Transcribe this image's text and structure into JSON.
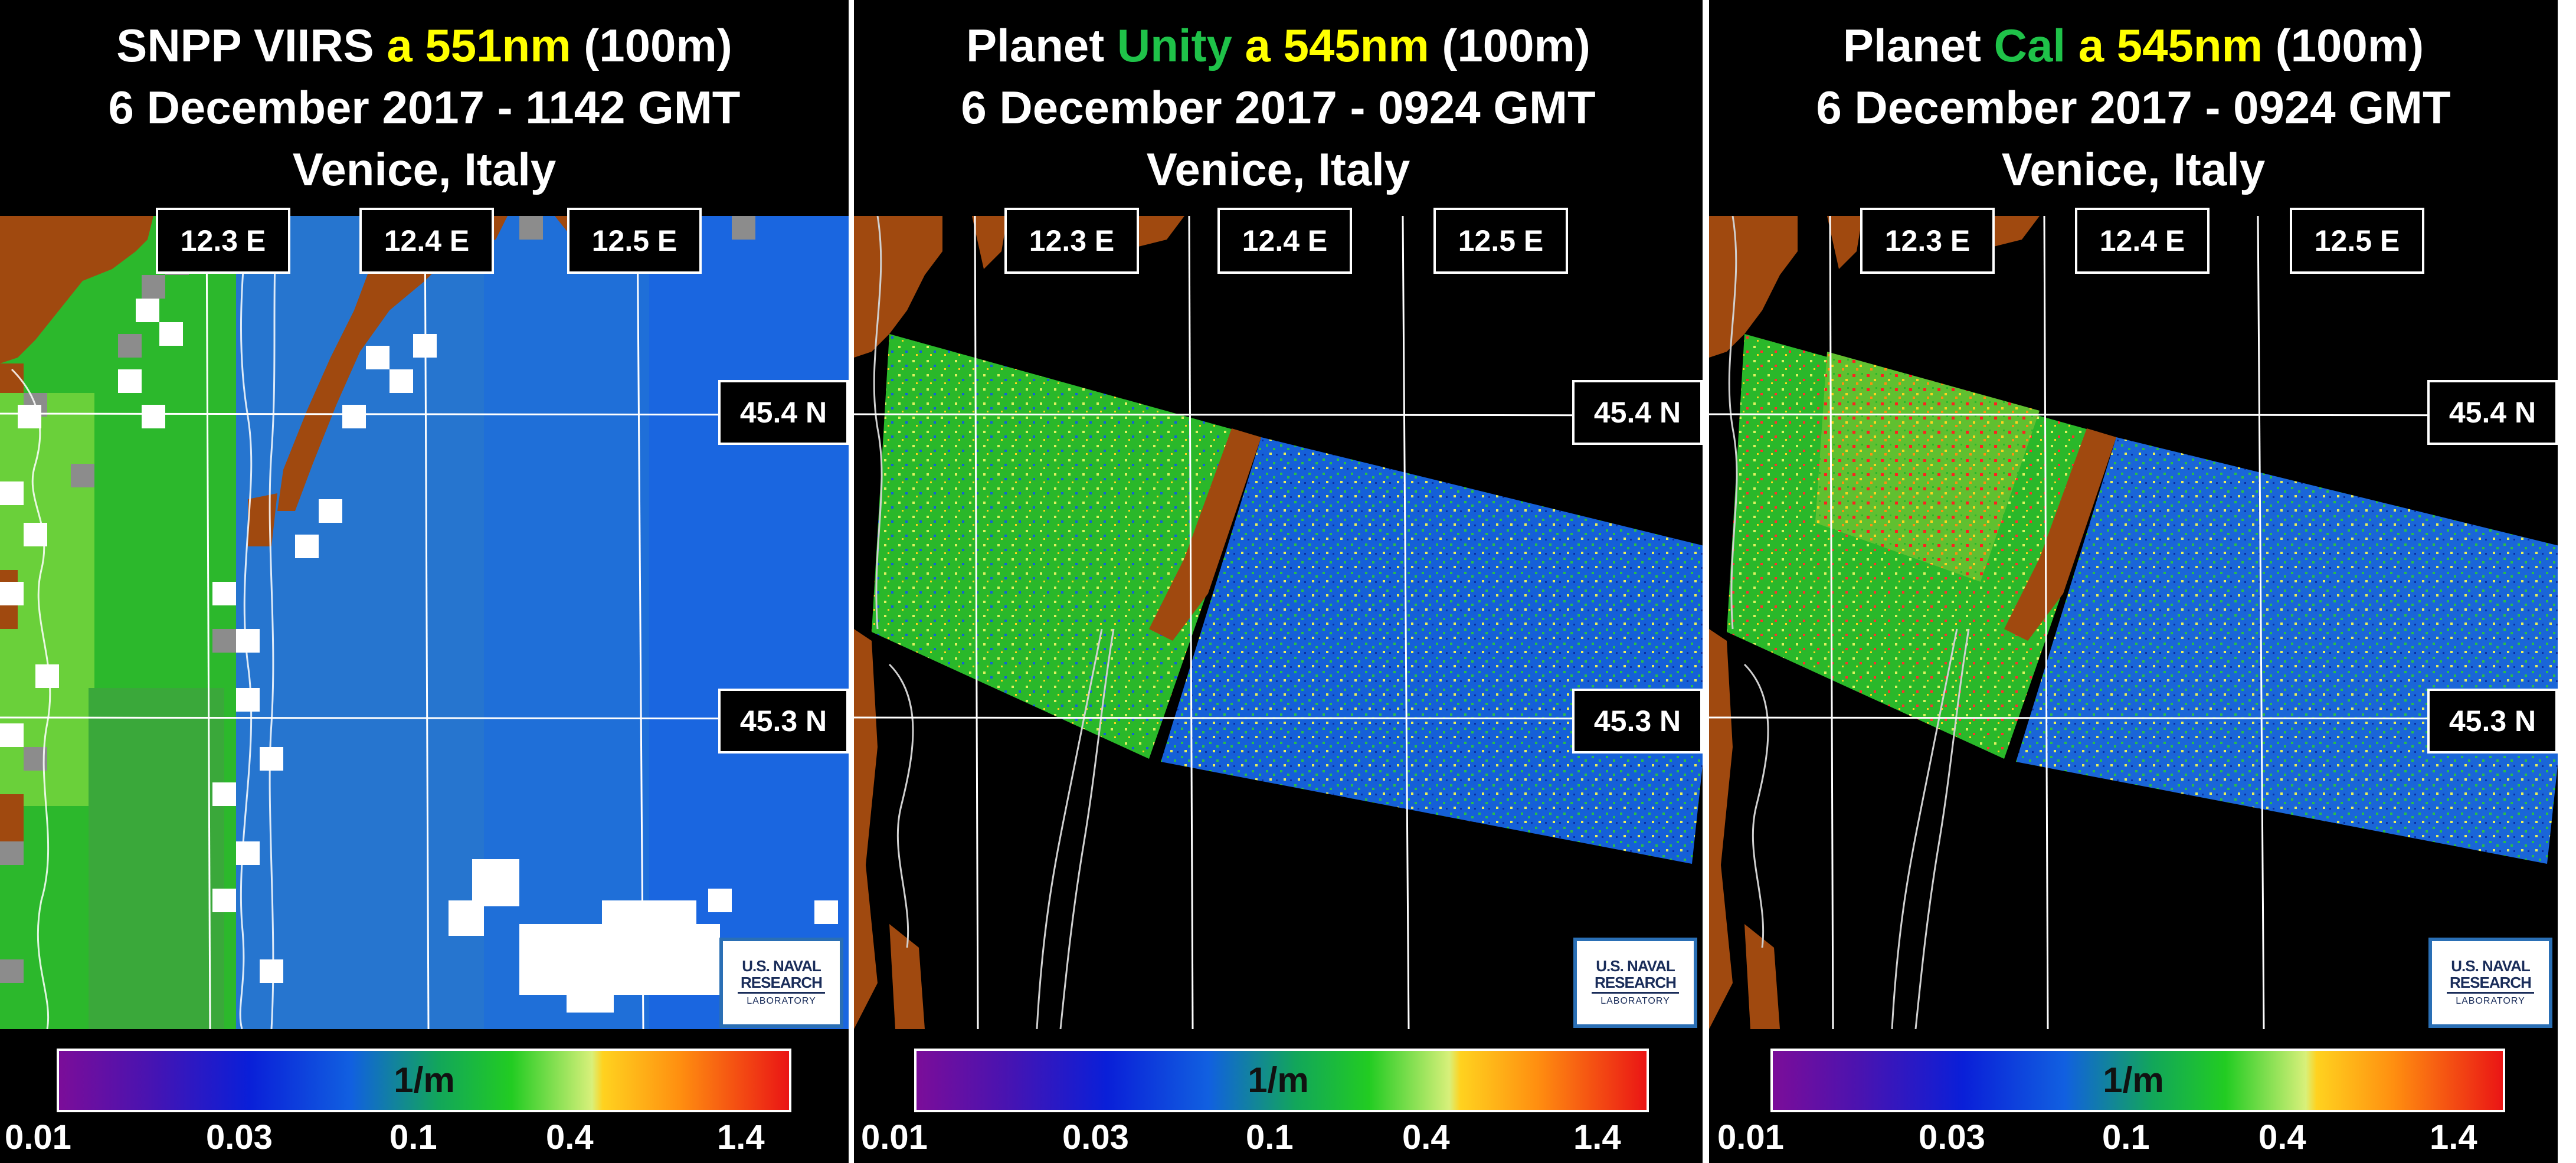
{
  "panels": [
    {
      "title_parts": [
        {
          "text": "SNPP VIIRS ",
          "color": "#ffffff"
        },
        {
          "text": "a 551nm",
          "color": "#ffff00"
        },
        {
          "text": " (100m)",
          "color": "#ffffff"
        }
      ],
      "date": "6 December 2017 - 1142 GMT",
      "place": "Venice, Italy"
    },
    {
      "title_parts": [
        {
          "text": "Planet ",
          "color": "#ffffff"
        },
        {
          "text": "Unity",
          "color": "#1fc249"
        },
        {
          "text": " a 545nm",
          "color": "#ffff00"
        },
        {
          "text": " (100m)",
          "color": "#ffffff"
        }
      ],
      "date": "6 December 2017 - 0924 GMT",
      "place": "Venice, Italy"
    },
    {
      "title_parts": [
        {
          "text": "Planet ",
          "color": "#ffffff"
        },
        {
          "text": "Cal",
          "color": "#1fc249"
        },
        {
          "text": " a 545nm",
          "color": "#ffff00"
        },
        {
          "text": " (100m)",
          "color": "#ffffff"
        }
      ],
      "date": "6 December 2017 - 0924 GMT",
      "place": "Venice, Italy"
    }
  ],
  "grid": {
    "lon_labels": [
      "12.3 E",
      "12.4 E",
      "12.5 E"
    ],
    "lat_labels": [
      "45.4 N",
      "45.3 N"
    ]
  },
  "colorbar": {
    "unit": "1/m",
    "ticks": [
      "0.01",
      "0.03",
      "0.1",
      "0.4",
      "1.4"
    ],
    "colors": [
      "#7b0d99",
      "#0a1fd8",
      "#1160e0",
      "#22cc22",
      "#d8f07a",
      "#ffd21f",
      "#ff8f10",
      "#ea1515"
    ]
  },
  "logo": {
    "line1": "U.S. NAVAL",
    "line2": "RESEARCH",
    "line3": "LABORATORY"
  },
  "colors": {
    "land": "#a0490f",
    "no_data": "#ffffff",
    "cloud_mask": "#8c8c8c",
    "water_blue": "#1f6fd8",
    "water_green": "#2cb82c",
    "grid_line": "#ffffff",
    "logo_border": "#2a6fb5"
  }
}
